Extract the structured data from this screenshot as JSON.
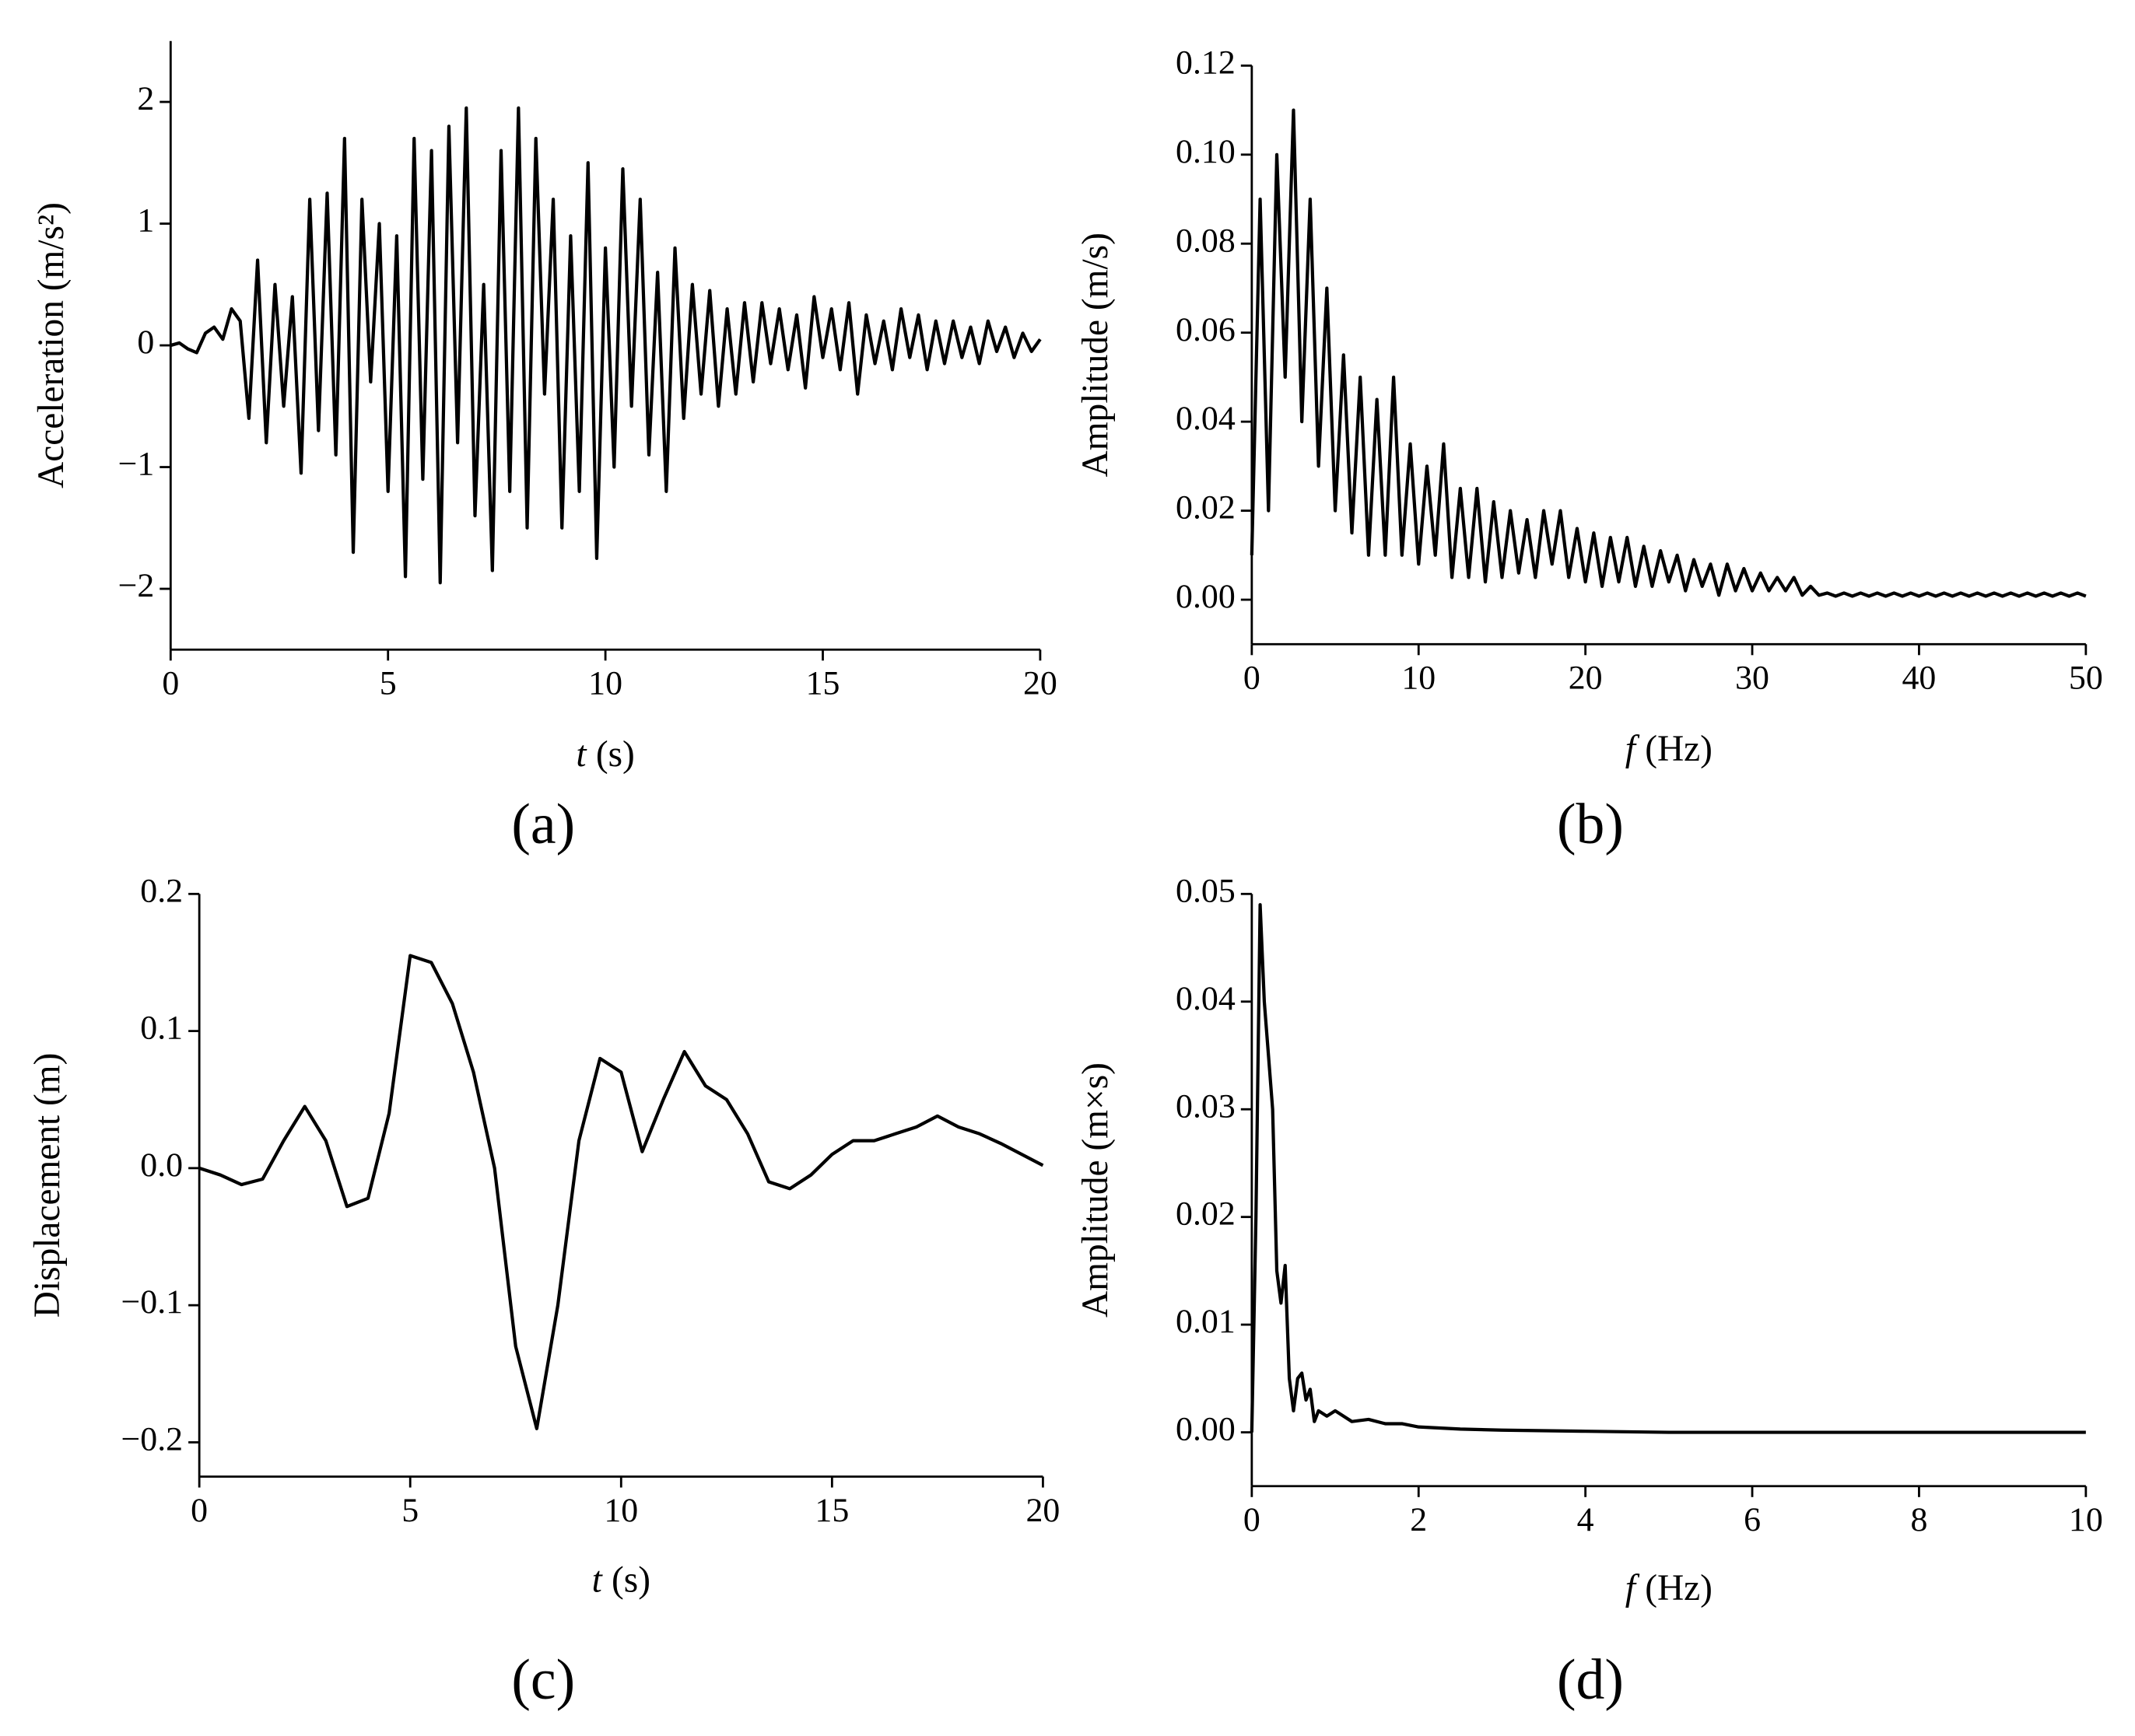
{
  "chart_data": [
    {
      "type": "line",
      "panel_label": "(a)",
      "ylabel": "Acceleration (m/s²)",
      "xlabel_var": "t",
      "xlabel_unit": "(s)",
      "color": "#000000",
      "xlim": [
        0,
        20
      ],
      "xticks": [
        0,
        5,
        10,
        15,
        20
      ],
      "ylim": [
        -2.5,
        2.5
      ],
      "yticks": [
        {
          "value": -2,
          "label": "−2"
        },
        {
          "value": -1,
          "label": "−1"
        },
        0,
        1,
        2
      ],
      "x": [
        0,
        0.2,
        0.4,
        0.6,
        0.8,
        1,
        1.2,
        1.4,
        1.6,
        1.8,
        2,
        2.2,
        2.4,
        2.6,
        2.8,
        3,
        3.2,
        3.4,
        3.6,
        3.8,
        4,
        4.2,
        4.4,
        4.6,
        4.8,
        5,
        5.2,
        5.4,
        5.6,
        5.8,
        6,
        6.2,
        6.4,
        6.6,
        6.8,
        7,
        7.2,
        7.4,
        7.6,
        7.8,
        8,
        8.2,
        8.4,
        8.6,
        8.8,
        9,
        9.2,
        9.4,
        9.6,
        9.8,
        10,
        10.2,
        10.4,
        10.6,
        10.8,
        11,
        11.2,
        11.4,
        11.6,
        11.8,
        12,
        12.2,
        12.4,
        12.6,
        12.8,
        13,
        13.2,
        13.4,
        13.6,
        13.8,
        14,
        14.2,
        14.4,
        14.6,
        14.8,
        15,
        15.2,
        15.4,
        15.6,
        15.8,
        16,
        16.2,
        16.4,
        16.6,
        16.8,
        17,
        17.2,
        17.4,
        17.6,
        17.8,
        18,
        18.2,
        18.4,
        18.6,
        18.8,
        19,
        19.2,
        19.4,
        19.6,
        19.8,
        20
      ],
      "values": [
        0,
        0.02,
        -0.03,
        -0.06,
        0.1,
        0.15,
        0.05,
        0.3,
        0.2,
        -0.6,
        0.7,
        -0.8,
        0.5,
        -0.5,
        0.4,
        -1.05,
        1.2,
        -0.7,
        1.25,
        -0.9,
        1.7,
        -1.7,
        1.2,
        -0.3,
        1.0,
        -1.2,
        0.9,
        -1.9,
        1.7,
        -1.1,
        1.6,
        -1.95,
        1.8,
        -0.8,
        1.95,
        -1.4,
        0.5,
        -1.85,
        1.6,
        -1.2,
        1.95,
        -1.5,
        1.7,
        -0.4,
        1.2,
        -1.5,
        0.9,
        -1.2,
        1.5,
        -1.75,
        0.8,
        -1.0,
        1.45,
        -0.5,
        1.2,
        -0.9,
        0.6,
        -1.2,
        0.8,
        -0.6,
        0.5,
        -0.4,
        0.45,
        -0.5,
        0.3,
        -0.4,
        0.35,
        -0.3,
        0.35,
        -0.15,
        0.3,
        -0.2,
        0.25,
        -0.35,
        0.4,
        -0.1,
        0.3,
        -0.2,
        0.35,
        -0.4,
        0.25,
        -0.15,
        0.2,
        -0.2,
        0.3,
        -0.1,
        0.25,
        -0.2,
        0.2,
        -0.15,
        0.2,
        -0.1,
        0.15,
        -0.15,
        0.2,
        -0.05,
        0.15,
        -0.1,
        0.1,
        -0.05,
        0.05
      ]
    },
    {
      "type": "line",
      "panel_label": "(b)",
      "ylabel": "Amplitude (m/s)",
      "xlabel_var": "f",
      "xlabel_unit": "(Hz)",
      "color": "#000000",
      "xlim": [
        0,
        50
      ],
      "xticks": [
        0,
        10,
        20,
        30,
        40,
        50
      ],
      "ylim": [
        -0.01,
        0.12
      ],
      "yticks": [
        {
          "value": 0,
          "label": "0.00"
        },
        0.02,
        0.04,
        0.06,
        0.08,
        {
          "value": 0.1,
          "label": "0.10"
        },
        {
          "value": 0.12,
          "label": "0.12"
        }
      ],
      "x": [
        0,
        0.5,
        1,
        1.5,
        2,
        2.5,
        3,
        3.5,
        4,
        4.5,
        5,
        5.5,
        6,
        6.5,
        7,
        7.5,
        8,
        8.5,
        9,
        9.5,
        10,
        10.5,
        11,
        11.5,
        12,
        12.5,
        13,
        13.5,
        14,
        14.5,
        15,
        15.5,
        16,
        16.5,
        17,
        17.5,
        18,
        18.5,
        19,
        19.5,
        20,
        20.5,
        21,
        21.5,
        22,
        22.5,
        23,
        23.5,
        24,
        24.5,
        25,
        25.5,
        26,
        26.5,
        27,
        27.5,
        28,
        28.5,
        29,
        29.5,
        30,
        30.5,
        31,
        31.5,
        32,
        32.5,
        33,
        33.5,
        34,
        34.5,
        35,
        35.5,
        36,
        36.5,
        37,
        37.5,
        38,
        38.5,
        39,
        39.5,
        40,
        40.5,
        41,
        41.5,
        42,
        42.5,
        43,
        43.5,
        44,
        44.5,
        45,
        45.5,
        46,
        46.5,
        47,
        47.5,
        48,
        48.5,
        49,
        49.5,
        50
      ],
      "values": [
        0.01,
        0.09,
        0.02,
        0.1,
        0.05,
        0.11,
        0.04,
        0.09,
        0.03,
        0.07,
        0.02,
        0.055,
        0.015,
        0.05,
        0.01,
        0.045,
        0.01,
        0.05,
        0.01,
        0.035,
        0.008,
        0.03,
        0.01,
        0.035,
        0.005,
        0.025,
        0.005,
        0.025,
        0.004,
        0.022,
        0.005,
        0.02,
        0.006,
        0.018,
        0.005,
        0.02,
        0.008,
        0.02,
        0.005,
        0.016,
        0.004,
        0.015,
        0.003,
        0.014,
        0.004,
        0.014,
        0.003,
        0.012,
        0.003,
        0.011,
        0.004,
        0.01,
        0.002,
        0.009,
        0.003,
        0.008,
        0.001,
        0.008,
        0.002,
        0.007,
        0.002,
        0.006,
        0.002,
        0.005,
        0.002,
        0.005,
        0.001,
        0.003,
        0.001,
        0.0015,
        0.0008,
        0.0015,
        0.0008,
        0.0015,
        0.0008,
        0.0015,
        0.0008,
        0.0015,
        0.0008,
        0.0015,
        0.0008,
        0.0015,
        0.0008,
        0.0015,
        0.0008,
        0.0015,
        0.0008,
        0.0015,
        0.0008,
        0.0015,
        0.0008,
        0.0015,
        0.0008,
        0.0015,
        0.0008,
        0.0015,
        0.0008,
        0.0015,
        0.0008,
        0.0015,
        0.0008
      ]
    },
    {
      "type": "line",
      "panel_label": "(c)",
      "ylabel": "Displacement (m)",
      "xlabel_var": "t",
      "xlabel_unit": "(s)",
      "color": "#000000",
      "xlim": [
        0,
        20
      ],
      "xticks": [
        0,
        5,
        10,
        15,
        20
      ],
      "ylim": [
        -0.225,
        0.2
      ],
      "yticks": [
        {
          "value": -0.2,
          "label": "−0.2"
        },
        {
          "value": -0.1,
          "label": "−0.1"
        },
        {
          "value": 0,
          "label": "0.0"
        },
        0.1,
        0.2
      ],
      "x": [
        0,
        0.5,
        1,
        1.5,
        2,
        2.5,
        3,
        3.5,
        4,
        4.5,
        5,
        5.5,
        6,
        6.5,
        7,
        7.5,
        8,
        8.5,
        9,
        9.5,
        10,
        10.5,
        11,
        11.5,
        12,
        12.5,
        13,
        13.5,
        14,
        14.5,
        15,
        15.5,
        16,
        16.5,
        17,
        17.5,
        18,
        18.5,
        19,
        19.5,
        20
      ],
      "values": [
        0,
        -0.005,
        -0.012,
        -0.008,
        0.02,
        0.045,
        0.02,
        -0.028,
        -0.022,
        0.04,
        0.155,
        0.15,
        0.12,
        0.07,
        0.0,
        -0.13,
        -0.19,
        -0.1,
        0.02,
        0.08,
        0.07,
        0.012,
        0.05,
        0.085,
        0.06,
        0.05,
        0.025,
        -0.01,
        -0.015,
        -0.005,
        0.01,
        0.02,
        0.02,
        0.025,
        0.03,
        0.038,
        0.03,
        0.025,
        0.018,
        0.01,
        0.002
      ]
    },
    {
      "type": "line",
      "panel_label": "(d)",
      "ylabel": "Amplitude (m×s)",
      "xlabel_var": "f",
      "xlabel_unit": "(Hz)",
      "color": "#000000",
      "xlim": [
        0,
        10
      ],
      "xticks": [
        0,
        2,
        4,
        6,
        8,
        10
      ],
      "ylim": [
        -0.005,
        0.05
      ],
      "yticks": [
        {
          "value": 0,
          "label": "0.00"
        },
        0.01,
        0.02,
        0.03,
        0.04,
        0.05
      ],
      "x": [
        0,
        0.05,
        0.1,
        0.15,
        0.2,
        0.25,
        0.3,
        0.35,
        0.4,
        0.45,
        0.5,
        0.55,
        0.6,
        0.65,
        0.7,
        0.75,
        0.8,
        0.9,
        1.0,
        1.2,
        1.4,
        1.6,
        1.8,
        2,
        2.5,
        3,
        4,
        5,
        6,
        7,
        8,
        9,
        10
      ],
      "values": [
        0.0,
        0.02,
        0.049,
        0.04,
        0.035,
        0.03,
        0.015,
        0.012,
        0.0155,
        0.005,
        0.002,
        0.005,
        0.0055,
        0.003,
        0.004,
        0.001,
        0.002,
        0.0015,
        0.002,
        0.001,
        0.0012,
        0.0008,
        0.0008,
        0.0005,
        0.0003,
        0.0002,
        0.0001,
        0,
        0,
        0,
        0,
        0,
        0
      ]
    }
  ]
}
